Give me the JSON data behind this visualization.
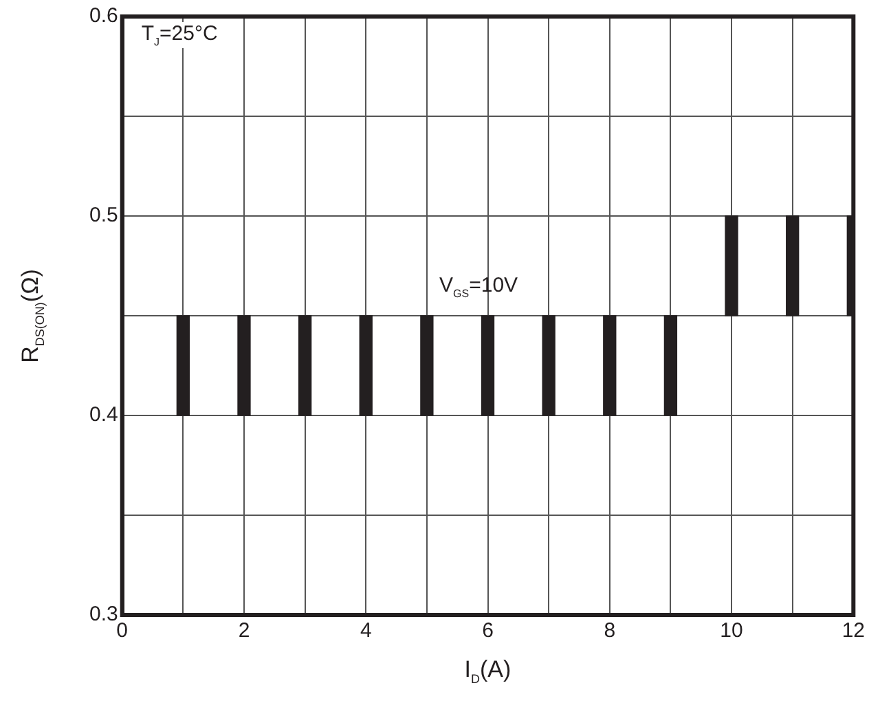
{
  "chart_data": {
    "type": "bar",
    "xlabel": "I$_{D}$(A)",
    "ylabel": "R$_{DS(ON)}$(Ω)",
    "x": [
      1,
      2,
      3,
      4,
      5,
      6,
      7,
      8,
      9,
      10,
      11,
      12
    ],
    "base": [
      0.4,
      0.4,
      0.4,
      0.4,
      0.4,
      0.4,
      0.4,
      0.4,
      0.4,
      0.45,
      0.45,
      0.45
    ],
    "values": [
      0.05,
      0.05,
      0.05,
      0.05,
      0.05,
      0.05,
      0.05,
      0.05,
      0.05,
      0.05,
      0.05,
      0.05
    ],
    "color": "#231f20",
    "xlim": [
      0,
      12
    ],
    "xticks": [
      0,
      {
        "value": 1,
        "label": null
      },
      2,
      {
        "value": 3,
        "label": null
      },
      4,
      {
        "value": 5,
        "label": null
      },
      6,
      {
        "value": 7,
        "label": null
      },
      8,
      {
        "value": 9,
        "label": null
      },
      10,
      {
        "value": 11,
        "label": null
      },
      12
    ],
    "ylim": [
      0.3,
      0.6
    ],
    "yticks": [
      0.3,
      {
        "value": 0.35,
        "label": null
      },
      0.4,
      {
        "value": 0.45,
        "label": null
      },
      0.5,
      {
        "value": 0.55,
        "label": null
      },
      0.6
    ],
    "grid": true,
    "legend": false,
    "annotations": [
      "T$_{J}$=25°C",
      "V$_{GS}$=10V"
    ]
  }
}
